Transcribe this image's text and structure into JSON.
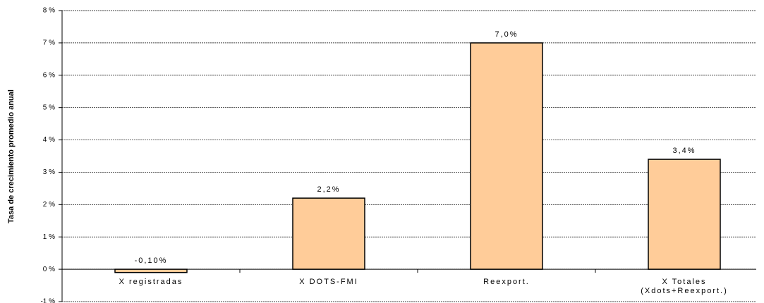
{
  "chart_data": {
    "type": "bar",
    "y_axis_label": "Tasa de crecimiento promedio anual",
    "categories": [
      "X registradas",
      "X DOTS-FMI",
      "Reexport.",
      "X Totales\n(Xdots+Reexport.)"
    ],
    "values": [
      -0.1,
      2.2,
      7.0,
      3.4
    ],
    "value_labels": [
      "-0,10%",
      "2,2%",
      "7,0%",
      "3,4%"
    ],
    "color": "#ffcc99",
    "ylim": [
      -1,
      8
    ],
    "yticks": [
      {
        "value": -1,
        "label": "-1 %"
      },
      {
        "value": 0,
        "label": "0 %"
      },
      {
        "value": 1,
        "label": "1 %"
      },
      {
        "value": 2,
        "label": "2 %"
      },
      {
        "value": 3,
        "label": "3 %"
      },
      {
        "value": 4,
        "label": "4 %"
      },
      {
        "value": 5,
        "label": "5 %"
      },
      {
        "value": 6,
        "label": "6 %"
      },
      {
        "value": 7,
        "label": "7 %"
      },
      {
        "value": 8,
        "label": "8 %"
      }
    ],
    "grid": true
  }
}
